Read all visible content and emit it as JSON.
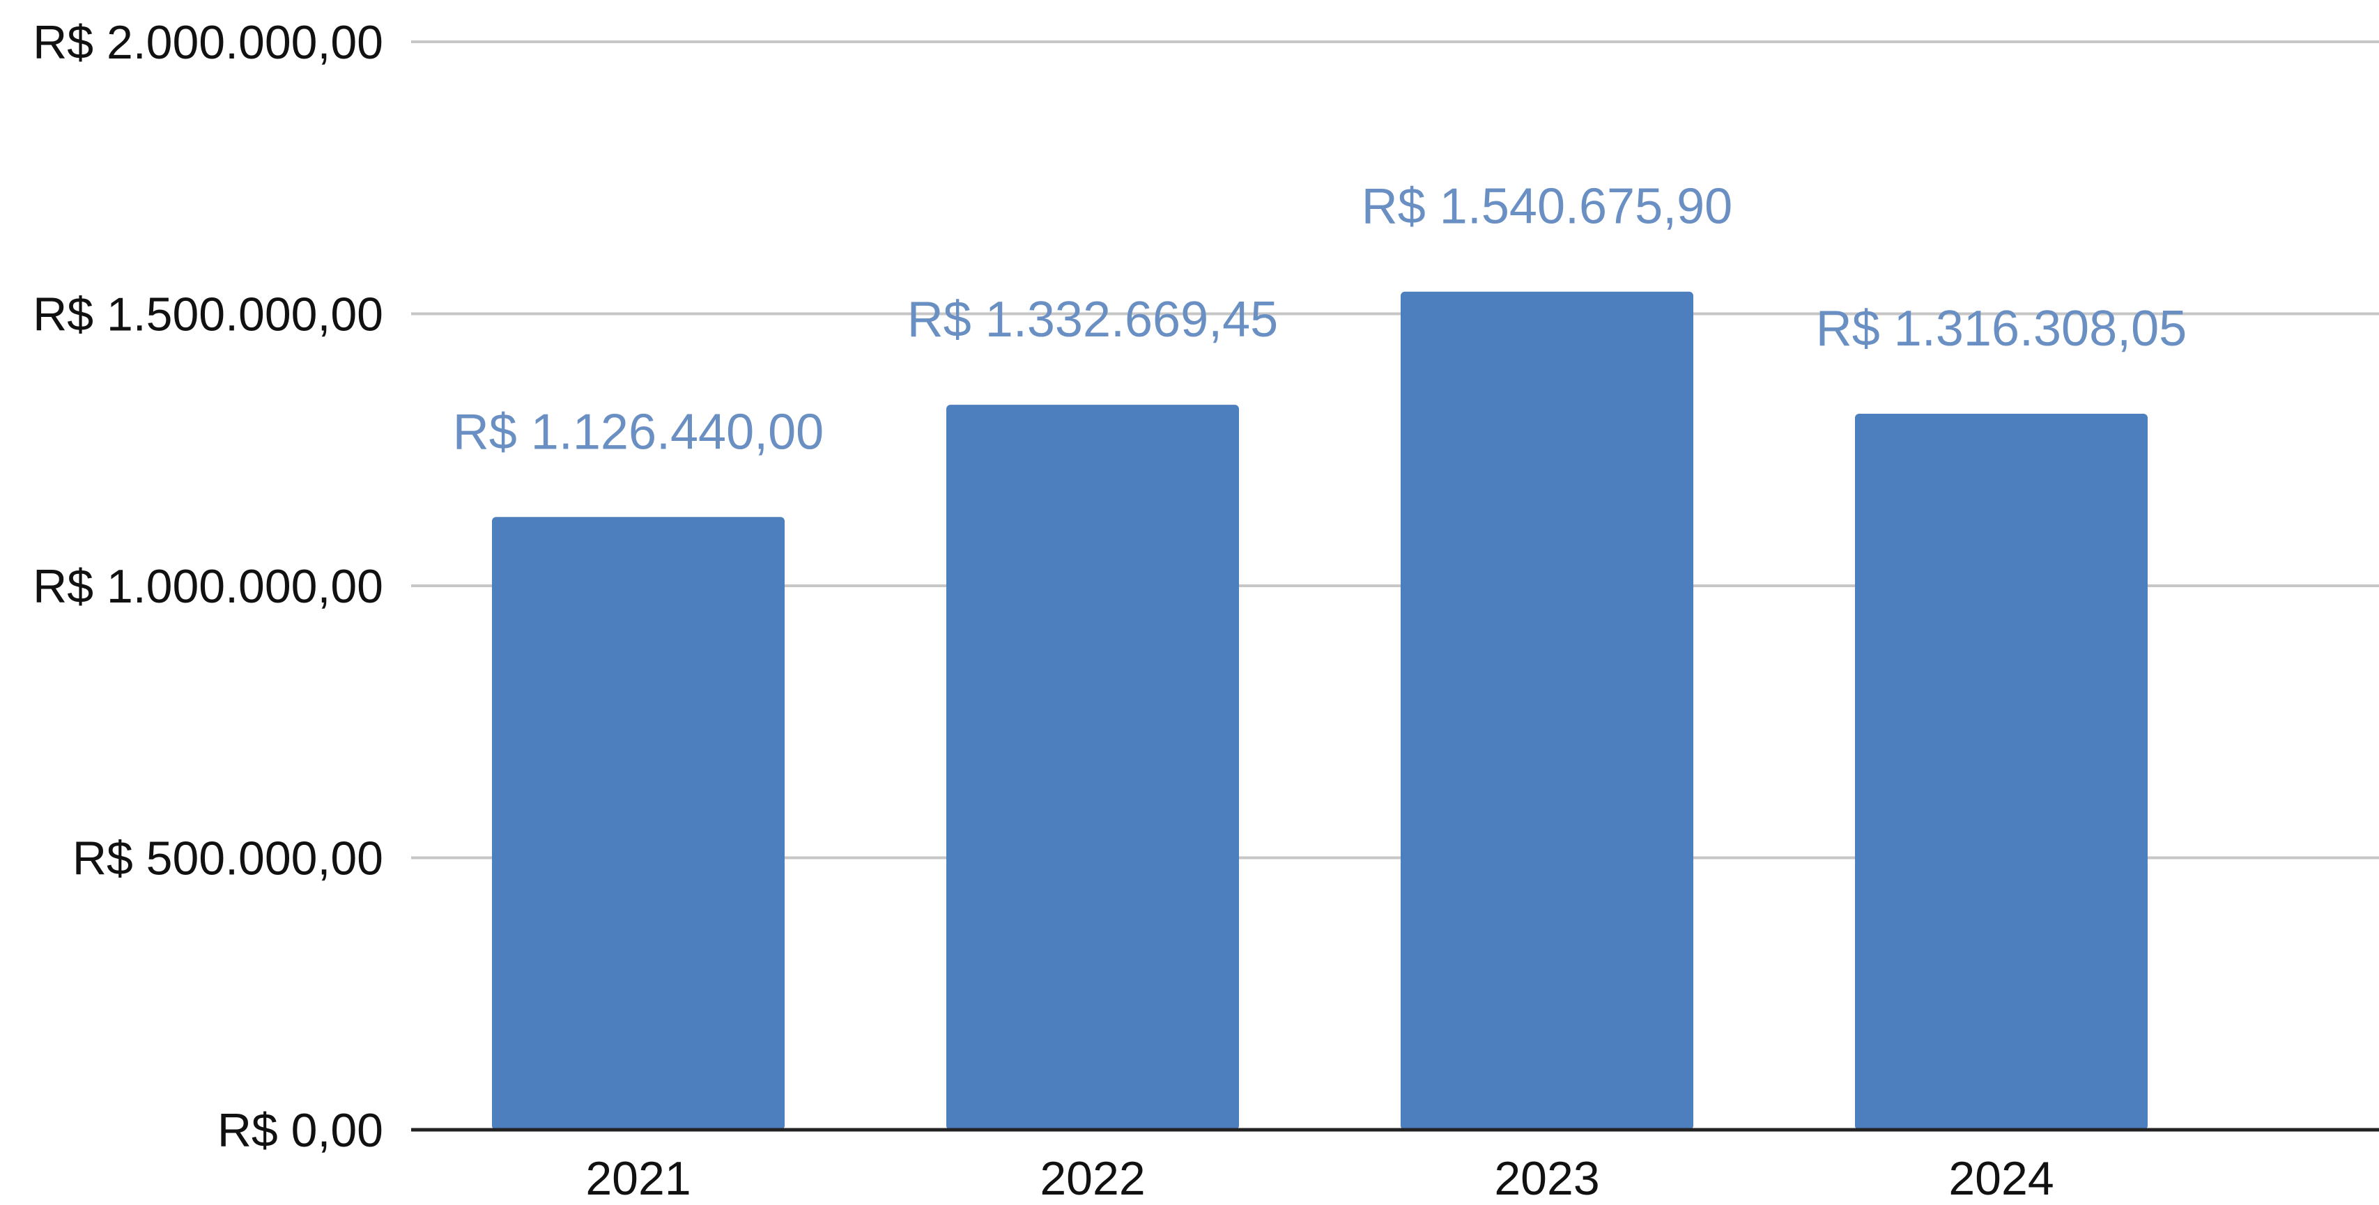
{
  "chart_data": {
    "type": "bar",
    "categories": [
      "2021",
      "2022",
      "2023",
      "2024"
    ],
    "series": [
      {
        "values": [
          1126440.0,
          1332669.45,
          1540675.9,
          1316308.05
        ]
      }
    ],
    "data_labels": [
      "R$ 1.126.440,00",
      "R$ 1.332.669,45",
      "R$ 1.540.675,90",
      "R$ 1.316.308,05"
    ],
    "y_tick_values": [
      0,
      500000,
      1000000,
      1500000,
      2000000
    ],
    "y_tick_labels": [
      "R$ 0,00",
      "R$ 500.000,00",
      "R$ 1.000.000,00",
      "R$ 1.500.000,00",
      "R$ 2.000.000,00"
    ],
    "ylim": [
      0,
      2000000
    ],
    "grid": true,
    "legend": "none",
    "title": "",
    "xlabel": "",
    "ylabel": "",
    "colors": {
      "bar": "#4d7ebd",
      "data_label": "#6a8fc2",
      "grid": "#c6c6c6",
      "axis": "#222222",
      "tick_text": "#111111"
    }
  }
}
